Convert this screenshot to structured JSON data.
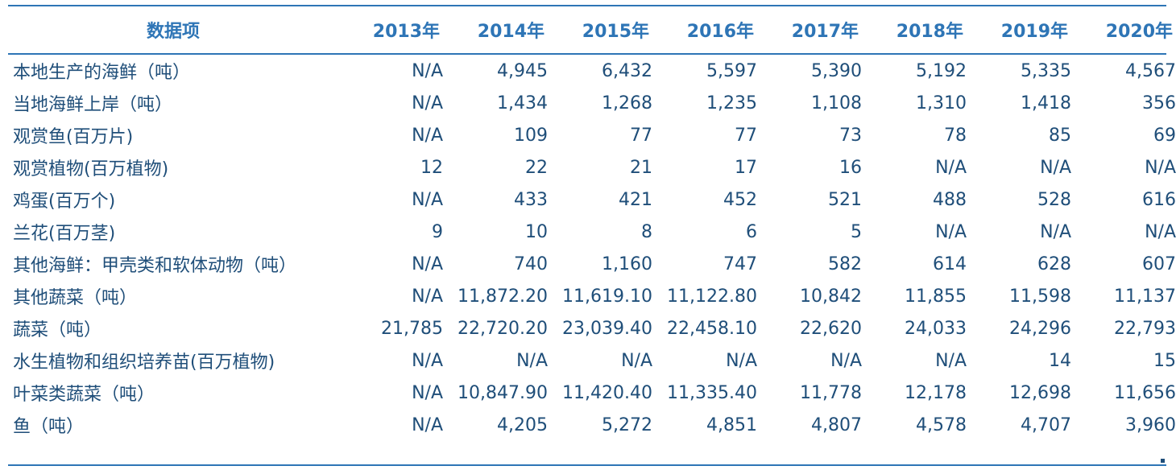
{
  "table": {
    "header_label": "数据项",
    "years": [
      "2013年",
      "2014年",
      "2015年",
      "2016年",
      "2017年",
      "2018年",
      "2019年",
      "2020年"
    ],
    "rows": [
      {
        "label": "本地生产的海鲜（吨）",
        "values": [
          "N/A",
          "4,945",
          "6,432",
          "5,597",
          "5,390",
          "5,192",
          "5,335",
          "4,567"
        ]
      },
      {
        "label": "当地海鲜上岸（吨）",
        "values": [
          "N/A",
          "1,434",
          "1,268",
          "1,235",
          "1,108",
          "1,310",
          "1,418",
          "356"
        ]
      },
      {
        "label": "观赏鱼(百万片)",
        "values": [
          "N/A",
          "109",
          "77",
          "77",
          "73",
          "78",
          "85",
          "69"
        ]
      },
      {
        "label": "观赏植物(百万植物)",
        "values": [
          "12",
          "22",
          "21",
          "17",
          "16",
          "N/A",
          "N/A",
          "N/A"
        ]
      },
      {
        "label": "鸡蛋(百万个)",
        "values": [
          "N/A",
          "433",
          "421",
          "452",
          "521",
          "488",
          "528",
          "616"
        ]
      },
      {
        "label": "兰花(百万茎)",
        "values": [
          "9",
          "10",
          "8",
          "6",
          "5",
          "N/A",
          "N/A",
          "N/A"
        ]
      },
      {
        "label": "其他海鲜：甲壳类和软体动物（吨）",
        "values": [
          "N/A",
          "740",
          "1,160",
          "747",
          "582",
          "614",
          "628",
          "607"
        ]
      },
      {
        "label": "其他蔬菜（吨）",
        "values": [
          "N/A",
          "11,872.20",
          "11,619.10",
          "11,122.80",
          "10,842",
          "11,855",
          "11,598",
          "11,137"
        ]
      },
      {
        "label": "蔬菜（吨）",
        "values": [
          "21,785",
          "22,720.20",
          "23,039.40",
          "22,458.10",
          "22,620",
          "24,033",
          "24,296",
          "22,793"
        ]
      },
      {
        "label": "水生植物和组织培养苗(百万植物)",
        "values": [
          "N/A",
          "N/A",
          "N/A",
          "N/A",
          "N/A",
          "N/A",
          "14",
          "15"
        ]
      },
      {
        "label": "叶菜类蔬菜（吨）",
        "values": [
          "N/A",
          "10,847.90",
          "11,420.40",
          "11,335.40",
          "11,778",
          "12,178",
          "12,698",
          "11,656"
        ]
      },
      {
        "label": "鱼（吨）",
        "values": [
          "N/A",
          "4,205",
          "5,272",
          "4,851",
          "4,807",
          "4,578",
          "4,707",
          "3,960"
        ]
      }
    ]
  },
  "colors": {
    "rule": "#2e75b6",
    "header_text": "#2e75b6",
    "body_text": "#1f4e79"
  }
}
